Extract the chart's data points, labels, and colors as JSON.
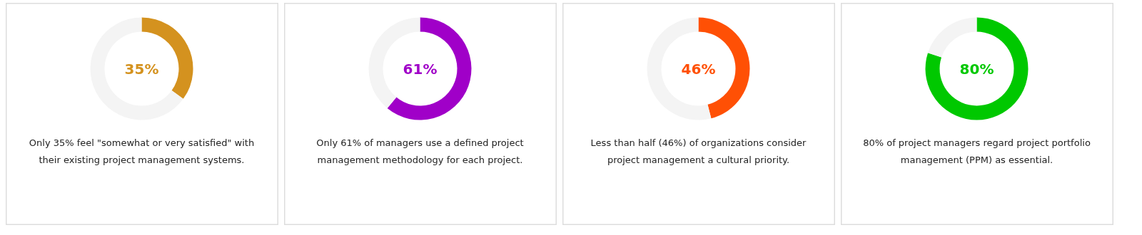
{
  "chart_data": [
    {
      "type": "donut",
      "categories": [
        null,
        null
      ],
      "values": [
        35,
        65
      ],
      "colors": [
        "#d4921f",
        "#f4f4f4"
      ],
      "annotations": [
        "35%",
        "Only 35% feel \"somewhat or very satisfied\" with their existing project management systems."
      ]
    },
    {
      "type": "donut",
      "categories": [
        null,
        null
      ],
      "values": [
        61,
        39
      ],
      "colors": [
        "#a000c8",
        "#f4f4f4"
      ],
      "annotations": [
        "61%",
        "Only 61% of managers use a defined project management methodology for each project."
      ]
    },
    {
      "type": "donut",
      "categories": [
        null,
        null
      ],
      "values": [
        46,
        54
      ],
      "colors": [
        "#ff5005",
        "#f4f4f4"
      ],
      "annotations": [
        "46%",
        "Less than half (46%) of organizations consider project management a cultural priority."
      ]
    },
    {
      "type": "donut",
      "categories": [
        null,
        null
      ],
      "values": [
        80,
        20
      ],
      "colors": [
        "#00c800",
        "#f4f4f4"
      ],
      "annotations": [
        "80%",
        "80% of project managers regard project portfolio management (PPM) as essential."
      ]
    }
  ]
}
